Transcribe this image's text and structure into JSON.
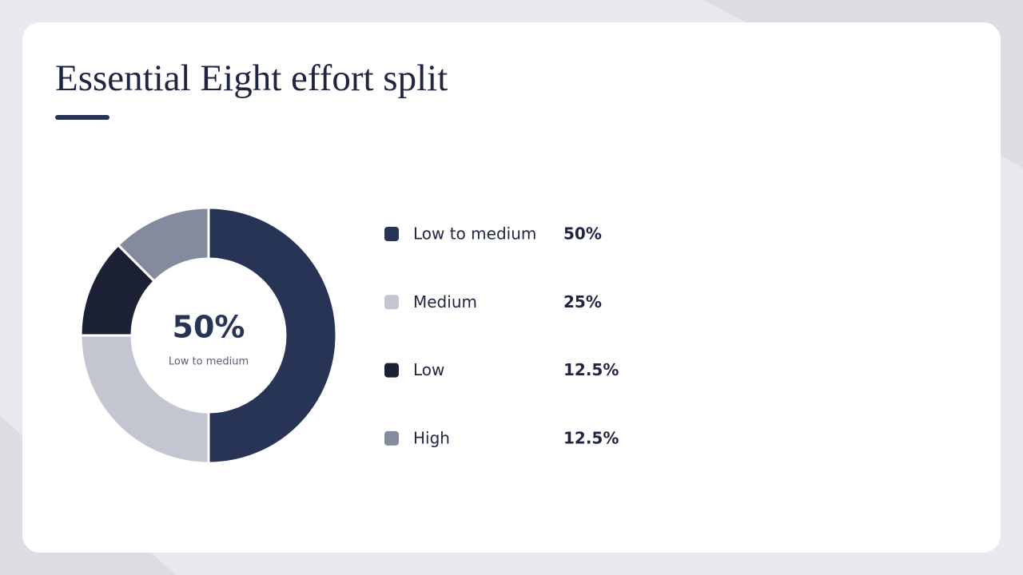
{
  "chart_data": {
    "type": "donut",
    "title": "Essential Eight effort split",
    "categories": [
      "Low to medium",
      "Medium",
      "Low",
      "High"
    ],
    "values": [
      50,
      25,
      12.5,
      12.5
    ],
    "value_labels": [
      "50%",
      "25%",
      "12.5%",
      "12.5%"
    ],
    "colors": [
      "#283456",
      "#c3c6d1",
      "#1c2136",
      "#858b9f"
    ]
  }
}
